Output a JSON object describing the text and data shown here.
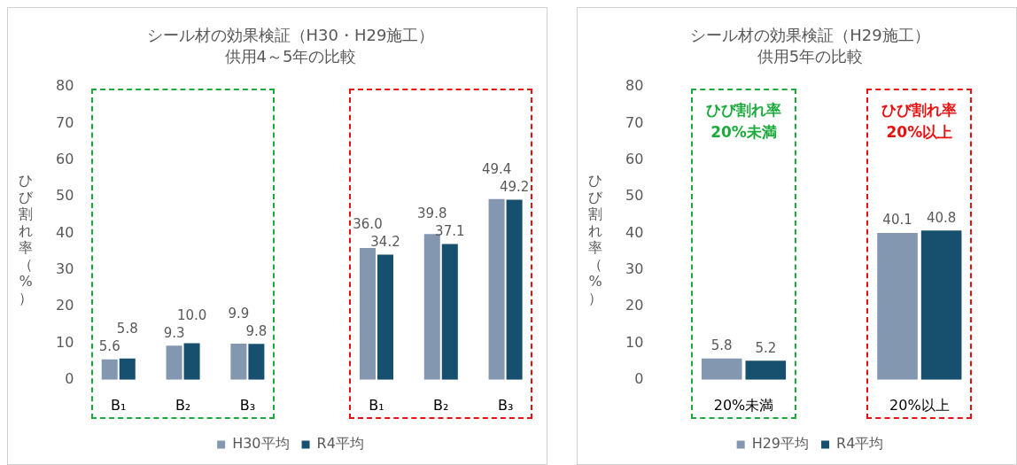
{
  "chart_data": [
    {
      "type": "bar",
      "title": "シール材の効果検証（H30・H29施工）",
      "subtitle": "供用4～5年の比較",
      "ylabel": "ひび割れ率（%）",
      "categories": [
        "B₁",
        "B₂",
        "B₃",
        null,
        "B₁",
        "B₂",
        "B₃"
      ],
      "series": [
        {
          "name": "H30平均",
          "color": "#8497b0",
          "values": [
            5.6,
            9.3,
            9.9,
            null,
            36.0,
            39.8,
            49.4
          ],
          "value_labels": [
            "5.6",
            "9.3",
            "9.9",
            null,
            "36.0",
            "39.8",
            "49.4"
          ]
        },
        {
          "name": "R4平均",
          "color": "#17506f",
          "values": [
            5.8,
            10.0,
            9.8,
            null,
            34.2,
            37.1,
            49.2
          ],
          "value_labels": [
            "5.8",
            "10.0",
            "9.8",
            null,
            "34.2",
            "37.1",
            "49.2"
          ]
        }
      ],
      "ylim": [
        0,
        80
      ],
      "yticks": [
        0,
        10,
        20,
        30,
        40,
        50,
        60,
        70,
        80
      ],
      "grid": false,
      "legend": "bottom"
    },
    {
      "type": "bar",
      "title": "シール材の効果検証（H29施工）",
      "subtitle": "供用5年の比較",
      "ylabel": "ひび割れ率（%）",
      "categories": [
        "20%未満",
        "20%以上"
      ],
      "series": [
        {
          "name": "H29平均",
          "color": "#8497b0",
          "values": [
            5.8,
            40.1
          ],
          "value_labels": [
            "5.8",
            "40.1"
          ]
        },
        {
          "name": "R4平均",
          "color": "#17506f",
          "values": [
            5.2,
            40.8
          ],
          "value_labels": [
            "5.2",
            "40.8"
          ]
        }
      ],
      "annotations": [
        "ひび割れ率\n20%未満",
        "ひび割れ率\n20%以上"
      ],
      "ylim": [
        0,
        80
      ],
      "yticks": [
        0,
        10,
        20,
        30,
        40,
        50,
        60,
        70,
        80
      ],
      "grid": false,
      "legend": "bottom"
    }
  ]
}
